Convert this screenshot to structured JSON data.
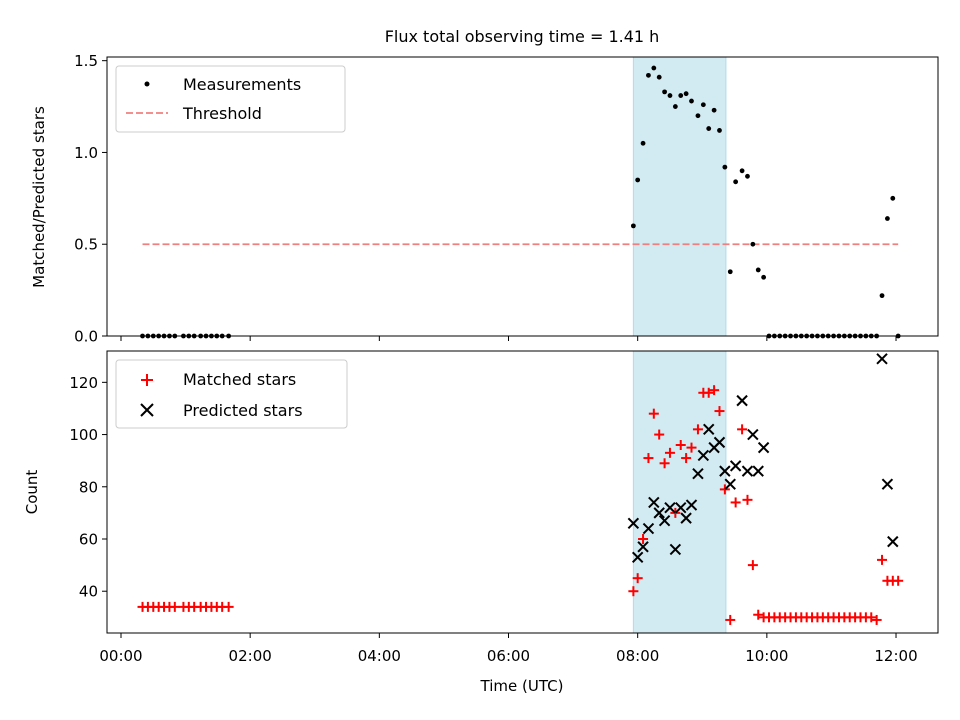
{
  "chart_data": [
    {
      "type": "scatter",
      "title": "Flux total observing time = 1.41 h",
      "ylabel": "Matched/Predicted stars",
      "xlabel": "",
      "xlim": [
        "23:47",
        "12:39"
      ],
      "ylim": [
        0,
        1.52
      ],
      "yticks": [
        0.0,
        0.5,
        1.0,
        1.5
      ],
      "ytick_labels": [
        "0.0",
        "0.5",
        "1.0",
        "1.5"
      ],
      "shaded_region": {
        "x": [
          "07:56",
          "09:22"
        ],
        "color": "#add8e6"
      },
      "legend": {
        "position": "top-left",
        "entries": [
          "Measurements",
          "Threshold"
        ]
      },
      "series": [
        {
          "name": "Measurements",
          "marker": "dot",
          "color": "#000000",
          "x": [
            "00:20",
            "00:25",
            "00:30",
            "00:35",
            "00:40",
            "00:45",
            "00:50",
            "00:58",
            "01:03",
            "01:08",
            "01:14",
            "01:19",
            "01:24",
            "01:29",
            "01:34",
            "01:40",
            "07:56",
            "08:00",
            "08:05",
            "08:10",
            "08:15",
            "08:20",
            "08:25",
            "08:30",
            "08:35",
            "08:40",
            "08:45",
            "08:50",
            "08:56",
            "09:01",
            "09:06",
            "09:11",
            "09:16",
            "09:21",
            "09:26",
            "09:31",
            "09:37",
            "09:42",
            "09:47",
            "09:52",
            "09:57",
            "10:02",
            "10:07",
            "10:12",
            "10:17",
            "10:22",
            "10:27",
            "10:32",
            "10:37",
            "10:42",
            "10:47",
            "10:52",
            "10:57",
            "11:02",
            "11:07",
            "11:12",
            "11:17",
            "11:22",
            "11:27",
            "11:32",
            "11:37",
            "11:42",
            "11:47",
            "11:52",
            "11:57",
            "12:02"
          ],
          "y": [
            0,
            0,
            0,
            0,
            0,
            0,
            0,
            0,
            0,
            0,
            0,
            0,
            0,
            0,
            0,
            0,
            0.6,
            0.85,
            1.05,
            1.42,
            1.46,
            1.41,
            1.33,
            1.31,
            1.25,
            1.31,
            1.32,
            1.28,
            1.2,
            1.26,
            1.13,
            1.23,
            1.12,
            0.92,
            0.35,
            0.84,
            0.9,
            0.87,
            0.5,
            0.36,
            0.32,
            0,
            0,
            0,
            0,
            0,
            0,
            0,
            0,
            0,
            0,
            0,
            0,
            0,
            0,
            0,
            0,
            0,
            0,
            0,
            0,
            0,
            0.22,
            0.64,
            0.75,
            0
          ]
        },
        {
          "name": "Threshold",
          "marker": "dashed-line",
          "color": "#f08080",
          "x": [
            "00:20",
            "12:02"
          ],
          "y": [
            0.5,
            0.5
          ]
        }
      ]
    },
    {
      "type": "scatter",
      "title": "",
      "ylabel": "Count",
      "xlabel": "Time (UTC)",
      "xlim": [
        "23:47",
        "12:39"
      ],
      "ylim": [
        24,
        132
      ],
      "yticks": [
        40,
        60,
        80,
        100,
        120
      ],
      "ytick_labels": [
        "40",
        "60",
        "80",
        "100",
        "120"
      ],
      "xticks": [
        "00:00",
        "02:00",
        "04:00",
        "06:00",
        "08:00",
        "10:00",
        "12:00"
      ],
      "shaded_region": {
        "x": [
          "07:56",
          "09:22"
        ],
        "color": "#add8e6"
      },
      "legend": {
        "position": "top-left",
        "entries": [
          "Matched stars",
          "Predicted stars"
        ]
      },
      "series": [
        {
          "name": "Matched stars",
          "marker": "plus",
          "color": "#ff0000",
          "x": [
            "00:20",
            "00:25",
            "00:30",
            "00:35",
            "00:40",
            "00:45",
            "00:50",
            "00:58",
            "01:03",
            "01:08",
            "01:14",
            "01:19",
            "01:24",
            "01:29",
            "01:34",
            "01:40",
            "07:56",
            "08:00",
            "08:05",
            "08:10",
            "08:15",
            "08:20",
            "08:25",
            "08:30",
            "08:35",
            "08:40",
            "08:45",
            "08:50",
            "08:56",
            "09:01",
            "09:06",
            "09:11",
            "09:16",
            "09:21",
            "09:26",
            "09:31",
            "09:37",
            "09:42",
            "09:47",
            "09:52",
            "09:57",
            "10:02",
            "10:07",
            "10:12",
            "10:17",
            "10:22",
            "10:27",
            "10:32",
            "10:37",
            "10:42",
            "10:47",
            "10:52",
            "10:57",
            "11:02",
            "11:07",
            "11:12",
            "11:17",
            "11:22",
            "11:27",
            "11:32",
            "11:37",
            "11:42",
            "11:47",
            "11:52",
            "11:57",
            "12:02"
          ],
          "y": [
            34,
            34,
            34,
            34,
            34,
            34,
            34,
            34,
            34,
            34,
            34,
            34,
            34,
            34,
            34,
            34,
            40,
            45,
            60,
            91,
            108,
            100,
            89,
            93,
            70,
            96,
            91,
            95,
            102,
            116,
            116,
            117,
            109,
            79,
            29,
            74,
            102,
            75,
            50,
            31,
            30,
            30,
            30,
            30,
            30,
            30,
            30,
            30,
            30,
            30,
            30,
            30,
            30,
            30,
            30,
            30,
            30,
            30,
            30,
            30,
            30,
            29,
            52,
            44,
            44,
            44
          ]
        },
        {
          "name": "Predicted stars",
          "marker": "x",
          "color": "#000000",
          "x": [
            "07:56",
            "08:00",
            "08:05",
            "08:10",
            "08:15",
            "08:20",
            "08:25",
            "08:30",
            "08:35",
            "08:40",
            "08:45",
            "08:50",
            "08:56",
            "09:01",
            "09:06",
            "09:11",
            "09:16",
            "09:21",
            "09:26",
            "09:31",
            "09:37",
            "09:42",
            "09:47",
            "09:52",
            "09:57",
            "11:47",
            "11:52",
            "11:57"
          ],
          "y": [
            66,
            53,
            57,
            64,
            74,
            70,
            67,
            72,
            56,
            72,
            68,
            73,
            85,
            92,
            102,
            95,
            97,
            86,
            81,
            88,
            113,
            86,
            100,
            86,
            95,
            129,
            81,
            59
          ]
        }
      ]
    }
  ]
}
